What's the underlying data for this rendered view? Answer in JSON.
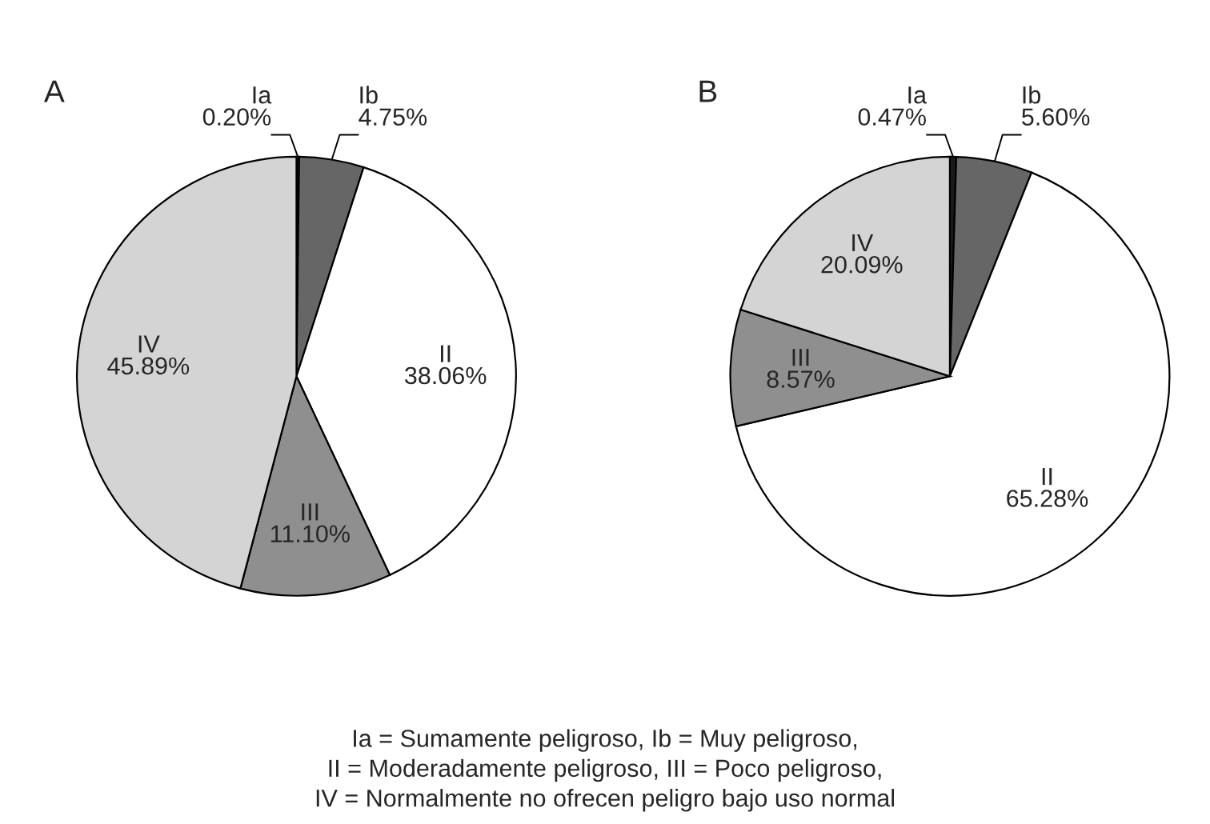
{
  "chart_data": [
    {
      "type": "pie",
      "title": "A",
      "categories": [
        "Ia",
        "Ib",
        "II",
        "III",
        "IV"
      ],
      "values": [
        0.2,
        4.75,
        38.06,
        11.1,
        45.89
      ],
      "value_labels": [
        "0.20%",
        "4.75%",
        "38.06%",
        "11.10%",
        "45.89%"
      ],
      "colors": [
        "#1a1a1a",
        "#666666",
        "#ffffff",
        "#8f8f8f",
        "#d4d4d4"
      ],
      "legend": false,
      "annotations": [
        "Ia = Sumamente peligroso, Ib = Muy peligroso,\nII = Moderadamente peligroso, III = Poco peligroso,\nIV = Normalmente no ofrecen peligro bajo uso normal"
      ]
    },
    {
      "type": "pie",
      "title": "B",
      "categories": [
        "Ia",
        "Ib",
        "II",
        "III",
        "IV"
      ],
      "values": [
        0.47,
        5.6,
        65.28,
        8.57,
        20.09
      ],
      "value_labels": [
        "0.47%",
        "5.60%",
        "65.28%",
        "8.57%",
        "20.09%"
      ],
      "colors": [
        "#1a1a1a",
        "#666666",
        "#ffffff",
        "#8f8f8f",
        "#d4d4d4"
      ],
      "legend": false
    }
  ]
}
